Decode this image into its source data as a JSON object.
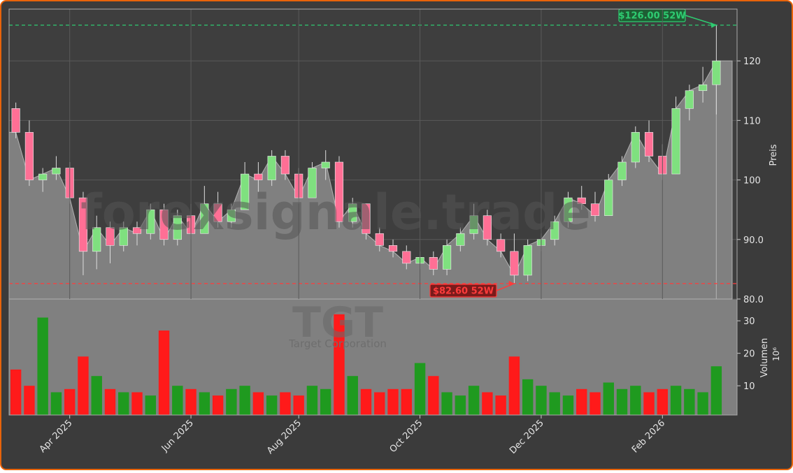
{
  "chart_data": [
    {
      "type": "candlestick",
      "categories": [
        null,
        null,
        null,
        null,
        "Apr 2025",
        null,
        null,
        null,
        null,
        null,
        null,
        null,
        null,
        "Jun 2025",
        null,
        null,
        null,
        null,
        null,
        null,
        null,
        "Aug 2025",
        null,
        null,
        null,
        null,
        null,
        null,
        null,
        null,
        "Oct 2025",
        null,
        null,
        null,
        null,
        null,
        null,
        null,
        null,
        "Dec 2025",
        null,
        null,
        null,
        null,
        null,
        null,
        null,
        null,
        "Feb 2026",
        null,
        null,
        null,
        null
      ],
      "open": [
        112,
        108,
        100,
        101,
        102,
        97,
        88,
        92,
        89,
        92,
        91,
        95,
        90,
        94,
        91,
        96,
        93,
        95,
        101,
        100,
        104,
        101,
        97,
        102,
        103,
        93,
        96,
        91,
        89,
        88,
        86,
        87,
        85,
        89,
        91,
        94,
        90,
        88,
        84,
        89,
        90,
        93,
        97,
        96,
        94,
        100,
        103,
        108,
        104,
        101,
        112,
        115,
        116
      ],
      "high": [
        113,
        110,
        102,
        104,
        103,
        98,
        94,
        93,
        93,
        93,
        96,
        96,
        95,
        96,
        99,
        98,
        96,
        103,
        103,
        105,
        105,
        102,
        103,
        105,
        104,
        97,
        96,
        92,
        90,
        89,
        88,
        88,
        90,
        92,
        96,
        95,
        91,
        91,
        90,
        91,
        94,
        98,
        99,
        98,
        101,
        104,
        109,
        110,
        106,
        114,
        116,
        119,
        126
      ],
      "low": [
        107,
        99,
        98,
        100,
        96,
        84,
        85,
        86,
        88,
        89,
        90,
        89,
        89,
        90,
        91,
        92,
        92,
        95,
        98,
        99,
        100,
        96,
        97,
        100,
        92,
        92,
        90,
        88,
        87,
        85,
        85,
        84,
        84,
        88,
        90,
        89,
        87,
        82.6,
        83,
        88,
        89,
        92,
        95,
        93,
        94,
        99,
        102,
        103,
        100,
        101,
        110,
        113,
        111
      ],
      "close": [
        108,
        100,
        101,
        102,
        97,
        88,
        92,
        89,
        92,
        91,
        95,
        90,
        94,
        91,
        96,
        93,
        95,
        101,
        100,
        104,
        101,
        97,
        102,
        103,
        93,
        96,
        91,
        89,
        88,
        86,
        87,
        85,
        89,
        91,
        94,
        90,
        88,
        84,
        89,
        90,
        93,
        97,
        96,
        94,
        100,
        103,
        108,
        104,
        101,
        112,
        115,
        116,
        120
      ],
      "up_color": "#7fe07f",
      "down_color": "#ff6f95",
      "ylim": [
        80,
        128.7
      ],
      "yticks": [
        {
          "value": 80,
          "label": "80.0"
        },
        {
          "value": 90,
          "label": "90.0"
        },
        100,
        110,
        120
      ],
      "y_label": "Preis",
      "grid": true,
      "annotations": [
        {
          "text": "$126.00 52W",
          "value": 126,
          "color": "#2ecc71"
        },
        {
          "text": "$82.60 52W",
          "value": 82.6,
          "color": "#ff3b3b"
        }
      ]
    },
    {
      "type": "bar",
      "values": [
        15,
        10,
        31,
        8,
        9,
        19,
        13,
        9,
        8,
        8,
        7,
        27,
        10,
        9,
        8,
        7,
        9,
        10,
        8,
        7,
        8,
        7,
        10,
        9,
        32,
        13,
        9,
        8,
        9,
        9,
        17,
        13,
        8,
        7,
        10,
        8,
        7,
        19,
        12,
        10,
        8,
        7,
        9,
        8,
        11,
        9,
        10,
        8,
        9,
        10,
        9,
        8,
        16
      ],
      "up_color": "#1f9a1f",
      "down_color": "#ff1a1a",
      "ylim": [
        1,
        36.7
      ],
      "yticks": [
        10,
        20,
        30
      ],
      "y_label": "Volumen",
      "offset_label": "10⁶"
    }
  ],
  "watermark": [
    "forexsignale.trade",
    "TGT",
    "Target Corporation"
  ]
}
